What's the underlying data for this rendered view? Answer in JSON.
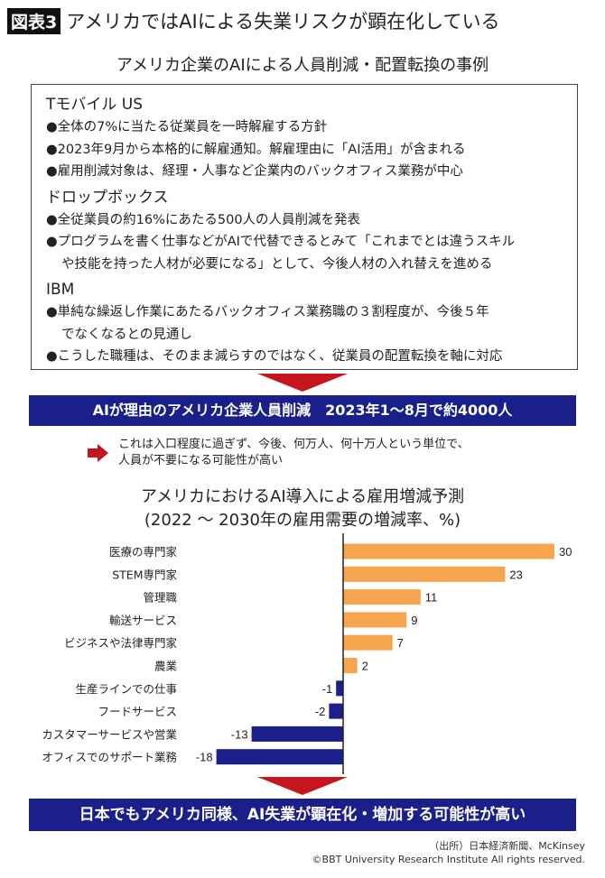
{
  "header": {
    "badge": "図表3",
    "title": "アメリカではAIによる失業リスクが顕在化している"
  },
  "cases": {
    "title": "アメリカ企業のAIによる人員削減・配置転換の事例",
    "companies": [
      {
        "name": "Tモバイル US",
        "items": [
          "●全体の7%に当たる従業員を一時解雇する方針",
          "●2023年9月から本格的に解雇通知。解雇理由に「AI活用」が含まれる",
          "●雇用削減対象は、経理・人事など企業内のバックオフィス業務が中心"
        ]
      },
      {
        "name": "ドロップボックス",
        "items": [
          "●全従業員の約16%にあたる500人の人員削減を発表",
          "●プログラムを書く仕事などがAIで代替できるとみて「これまでとは違うスキル",
          "や技能を持った人材が必要になる」として、今後人材の入れ替えを進める"
        ]
      },
      {
        "name": "IBM",
        "items": [
          "●単純な繰返し作業にあたるバックオフィス業務職の３割程度が、今後５年",
          "でなくなるとの見通し",
          "●こうした職種は、そのまま減らすのではなく、従業員の配置転換を軸に対応"
        ]
      }
    ]
  },
  "banner1": "AIが理由のアメリカ企業人員削減　2023年1〜8月で約4000人",
  "note": [
    "これは入口程度に過ぎず、今後、何万人、何十万人という単位で、",
    "人員が不要になる可能性が高い"
  ],
  "chart_data": {
    "type": "bar",
    "orientation": "horizontal",
    "title": [
      "アメリカにおけるAI導入による雇用増減予測",
      "(2022 〜 2030年の雇用需要の増減率、%)"
    ],
    "categories": [
      "医療の専門家",
      "STEM専門家",
      "管理職",
      "輸送サービス",
      "ビジネスや法律専門家",
      "農業",
      "生産ラインでの仕事",
      "フードサービス",
      "カスタマーサービスや営業",
      "オフィスでのサポート業務"
    ],
    "values": [
      30,
      23,
      11,
      9,
      7,
      2,
      -1,
      -2,
      -13,
      -18
    ],
    "labels": [
      "30",
      "23",
      "11",
      "9",
      "7",
      "2",
      "-1",
      "-2",
      "-13",
      "-18"
    ],
    "colors": {
      "positive": "#f6a54e",
      "negative": "#1b1f8a"
    },
    "grid": false
  },
  "banner2": "日本でもアメリカ同様、AI失業が顕在化・増加する可能性が高い",
  "source": [
    "（出所）日本経済新聞、McKinsey",
    "©BBT University Research Institute All rights reserved."
  ]
}
